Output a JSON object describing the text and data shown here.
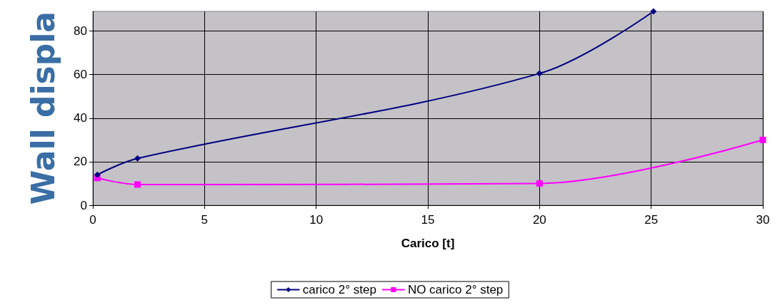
{
  "chart_data": {
    "type": "line",
    "xlabel": "Carico [t]",
    "ylabel": "Wall displa",
    "xlim": [
      0,
      30
    ],
    "xticks": [
      0,
      5,
      10,
      15,
      20,
      25,
      30
    ],
    "ylim": [
      0,
      89
    ],
    "yticks": [
      0,
      20,
      40,
      60,
      80
    ],
    "grid": true,
    "legend": "bottom",
    "line_style": "solid",
    "series": [
      {
        "name": "carico 2° step",
        "color": "#000080",
        "marker": "diamond",
        "x": [
          0.2,
          2,
          20,
          25.1
        ],
        "values": [
          14,
          21.5,
          60.5,
          89
        ]
      },
      {
        "name": "NO carico 2° step",
        "color": "#ff00ff",
        "marker": "square",
        "x": [
          0.2,
          2,
          20,
          30
        ],
        "values": [
          12.5,
          9.5,
          10,
          30
        ]
      }
    ]
  }
}
